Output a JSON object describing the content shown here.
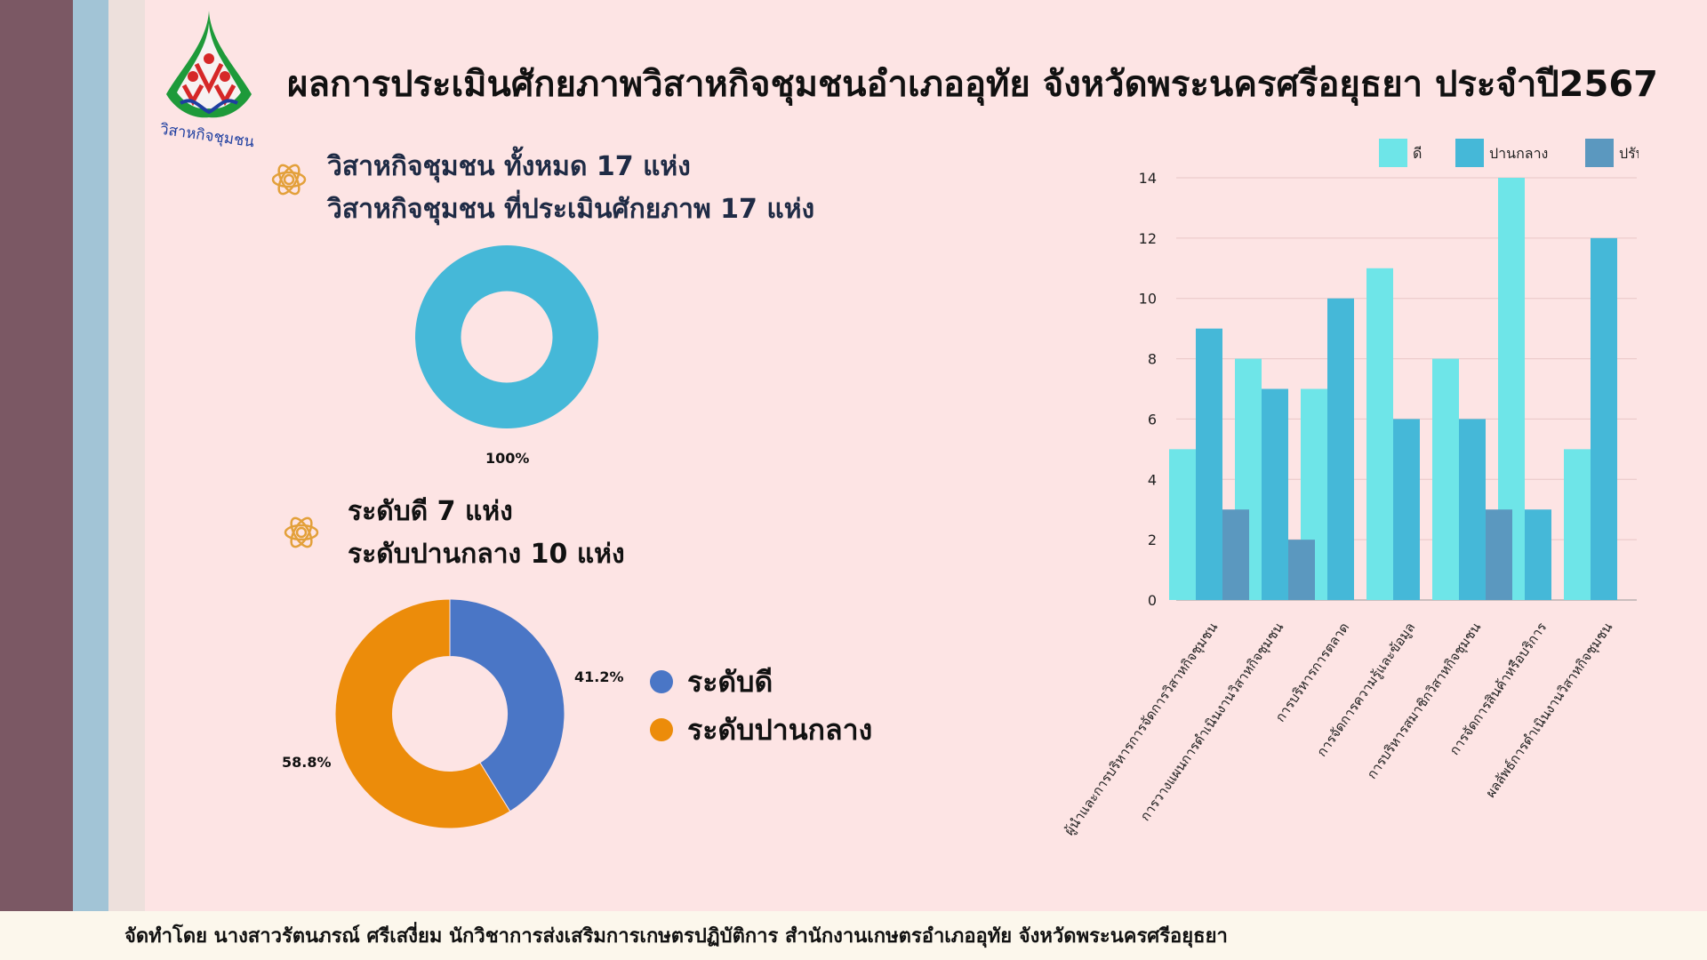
{
  "header": {
    "title": "ผลการประเมินศักยภาพวิสาหกิจชุมชนอำเภออุทัย จังหวัดพระนครศรีอยุธยา ประจำปี2567",
    "logo_text": "วิสาหกิจชุมชน"
  },
  "summary": {
    "line1": "วิสาหกิจชุมชน ทั้งหมด 17 แห่ง",
    "line2": "วิสาหกิจชุมชน ที่ประเมินศักยภาพ 17 แห่ง",
    "level_good": "ระดับดี 7 แห่ง",
    "level_medium": "ระดับปานกลาง 10 แห่ง"
  },
  "footer": {
    "text": "จัดทำโดย นางสาวรัตนภรณ์ ศรีเสงี่ยม นักวิชาการส่งเสริมการเกษตรปฏิบัติการ สำนักงานเกษตรอำเภออุทัย จังหวัดพระนครศรีอยุธยา"
  },
  "chart_data": [
    {
      "type": "pie",
      "donut": true,
      "labels": [
        ""
      ],
      "values": [
        100
      ],
      "data_labels": [
        "100%"
      ],
      "colors": [
        "#45b8d8"
      ]
    },
    {
      "type": "pie",
      "donut": true,
      "labels": [
        "ระดับดี",
        "ระดับปานกลาง"
      ],
      "values": [
        41.2,
        58.8
      ],
      "data_labels": [
        "41.2%",
        "58.8%"
      ],
      "colors": [
        "#4a76c6",
        "#ec8c0a"
      ],
      "legend": "right"
    },
    {
      "type": "bar",
      "categories": [
        "ผู้นำและการบริหารการจัดการวิสาหกิจชุมชน",
        "การวางแผนการดำเนินงานวิสาหกิจชุมชน",
        "การบริหารการตลาด",
        "การจัดการความรู้และข้อมูล",
        "การบริหารสมาชิกวิสาหกิจชุมชน",
        "การจัดการสินค้าหรือบริการ",
        "ผลลัพธ์การดำเนินงานวิสาหกิจชุมชน"
      ],
      "series": [
        {
          "name": "ดี",
          "values": [
            5,
            8,
            7,
            11,
            8,
            14,
            5
          ],
          "color": "#6ee5e8"
        },
        {
          "name": "ปานกลาง",
          "values": [
            9,
            7,
            10,
            6,
            6,
            3,
            12
          ],
          "color": "#45b8d8"
        },
        {
          "name": "ปรับปรุง",
          "values": [
            3,
            2,
            0,
            0,
            3,
            0,
            0
          ],
          "color": "#5b98bf"
        }
      ],
      "yticks": [
        0,
        2,
        4,
        6,
        8,
        10,
        12,
        14
      ],
      "ylim": [
        0,
        14
      ],
      "grid": true,
      "legend": "top"
    }
  ]
}
